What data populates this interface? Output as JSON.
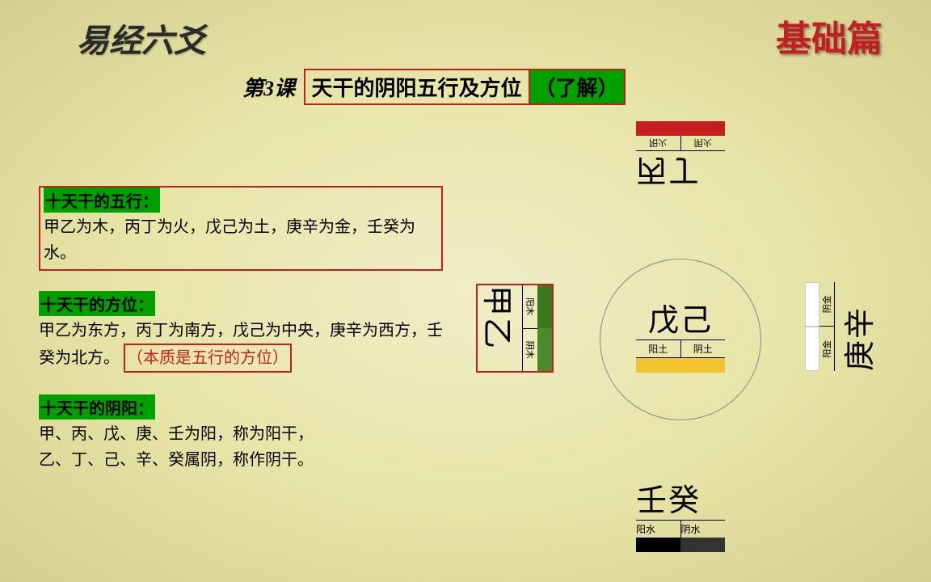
{
  "header": {
    "left": "易经六爻",
    "right": "基础篇"
  },
  "lesson": {
    "num": "第3课",
    "title_main": "天干的阴阳五行及方位",
    "title_note": "（了解）"
  },
  "sections": {
    "wuxing": {
      "heading": "十天干的五行：",
      "body": "甲乙为木，丙丁为火，戊己为土，庚辛为金，壬癸为水。"
    },
    "fangwei": {
      "heading": "十天干的方位：",
      "body": "甲乙为东方，丙丁为南方，戊己为中央，庚辛为西方，壬癸为北方。",
      "note": "（本质是五行的方位）"
    },
    "yinyang": {
      "heading": "十天干的阴阳：",
      "line1": "甲、丙、戊、庚、壬为阳，称为阳干，",
      "line2": "乙、丁、己、辛、癸属阴，称作阴干。"
    }
  },
  "diagram": {
    "center": {
      "chars": "戊己",
      "sub1": "阳土",
      "sub2": "阴土",
      "color": "#f4c430"
    },
    "north": {
      "chars": "丙丁",
      "sub1": "阳火",
      "sub2": "阴火",
      "color": "#c41e1e"
    },
    "south": {
      "chars": "壬癸",
      "sub1": "阳水",
      "sub2": "阴水",
      "color": "#000000"
    },
    "east": {
      "chars": "甲乙",
      "sub1": "阳木",
      "sub2": "阴木",
      "color": "#3a7a1a"
    },
    "west": {
      "chars": "庚辛",
      "sub1": "阳金",
      "sub2": "阴金",
      "color": "#ffffff"
    }
  },
  "colors": {
    "accent_red": "#c41e1e",
    "accent_green": "#00a000",
    "bg_inner": "#f0edc8",
    "bg_outer": "#d4d090"
  }
}
